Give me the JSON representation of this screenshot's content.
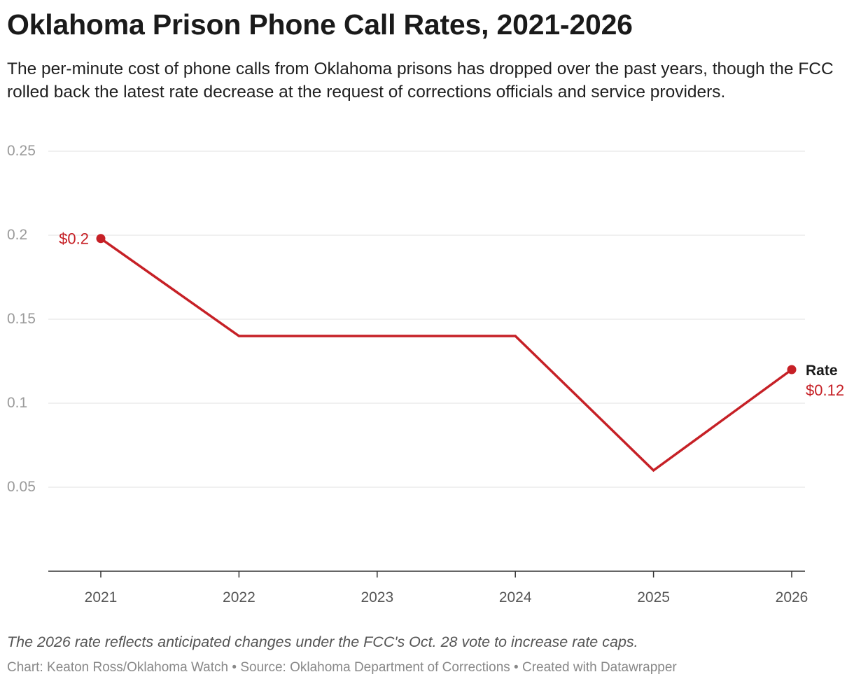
{
  "colors": {
    "series": "#c62026",
    "grid": "#e0e0e0",
    "axis": "#333333"
  },
  "credits": {
    "chart_by": "Chart: Keaton Ross/Oklahoma Watch",
    "separator": " • ",
    "source": "Source: Oklahoma Department of Corrections",
    "created_with": "Created with Datawrapper"
  },
  "chart_data": {
    "type": "line",
    "title": "Oklahoma Prison Phone Call Rates, 2021-2026",
    "subtitle": "The per-minute cost of phone calls from Oklahoma prisons has dropped over the past years, though the FCC rolled back the latest rate decrease at the request of corrections officials and service providers.",
    "note": "The 2026 rate reflects anticipated changes under the FCC's Oct. 28 vote to increase rate caps.",
    "x": [
      "2021",
      "2022",
      "2023",
      "2024",
      "2025",
      "2026"
    ],
    "series": [
      {
        "name": "Rate",
        "values": [
          0.198,
          0.14,
          0.14,
          0.14,
          0.06,
          0.12
        ]
      }
    ],
    "ylim": [
      0,
      0.25
    ],
    "yticks": [
      "0.25",
      "0.2",
      "0.15",
      "0.1",
      "0.05"
    ],
    "ytick_values": [
      0.25,
      0.2,
      0.15,
      0.1,
      0.05
    ],
    "annotations": {
      "first_value_label": "$0.2",
      "last_value_label": "$0.12"
    },
    "markers": [
      "first",
      "last"
    ],
    "grid": true,
    "legend": "direct label at line end (right)"
  }
}
